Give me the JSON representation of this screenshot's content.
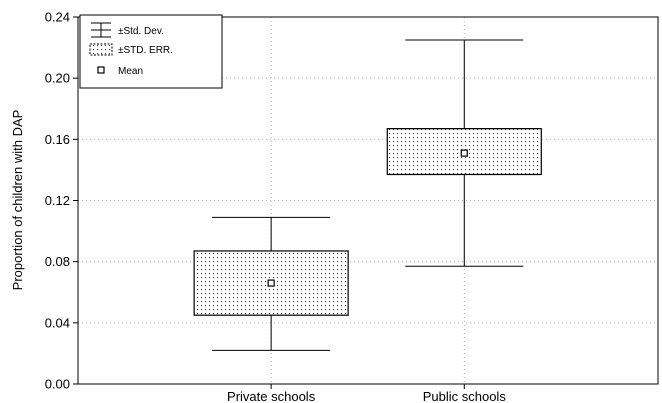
{
  "chart_data": {
    "type": "box",
    "ylabel": "Proportion of children with DAP",
    "xlabel": "",
    "ylim": [
      0.0,
      0.24
    ],
    "yticks": [
      0.0,
      0.04,
      0.08,
      0.12,
      0.16,
      0.2,
      0.24
    ],
    "ytick_labels": [
      "0.00",
      "0.04",
      "0.08",
      "0.12",
      "0.16",
      "0.20",
      "0.24"
    ],
    "categories": [
      "Private schools",
      "Public schools"
    ],
    "grid": true,
    "legend_position": "top-left",
    "legend": {
      "std_dev": "±Std. Dev.",
      "std_err": "±STD. ERR.",
      "mean": "Mean"
    },
    "series": [
      {
        "category": "Private schools",
        "mean": 0.066,
        "se_low": 0.045,
        "se_high": 0.087,
        "sd_low": 0.022,
        "sd_high": 0.109
      },
      {
        "category": "Public schools",
        "mean": 0.151,
        "se_low": 0.137,
        "se_high": 0.167,
        "sd_low": 0.077,
        "sd_high": 0.225
      }
    ]
  }
}
